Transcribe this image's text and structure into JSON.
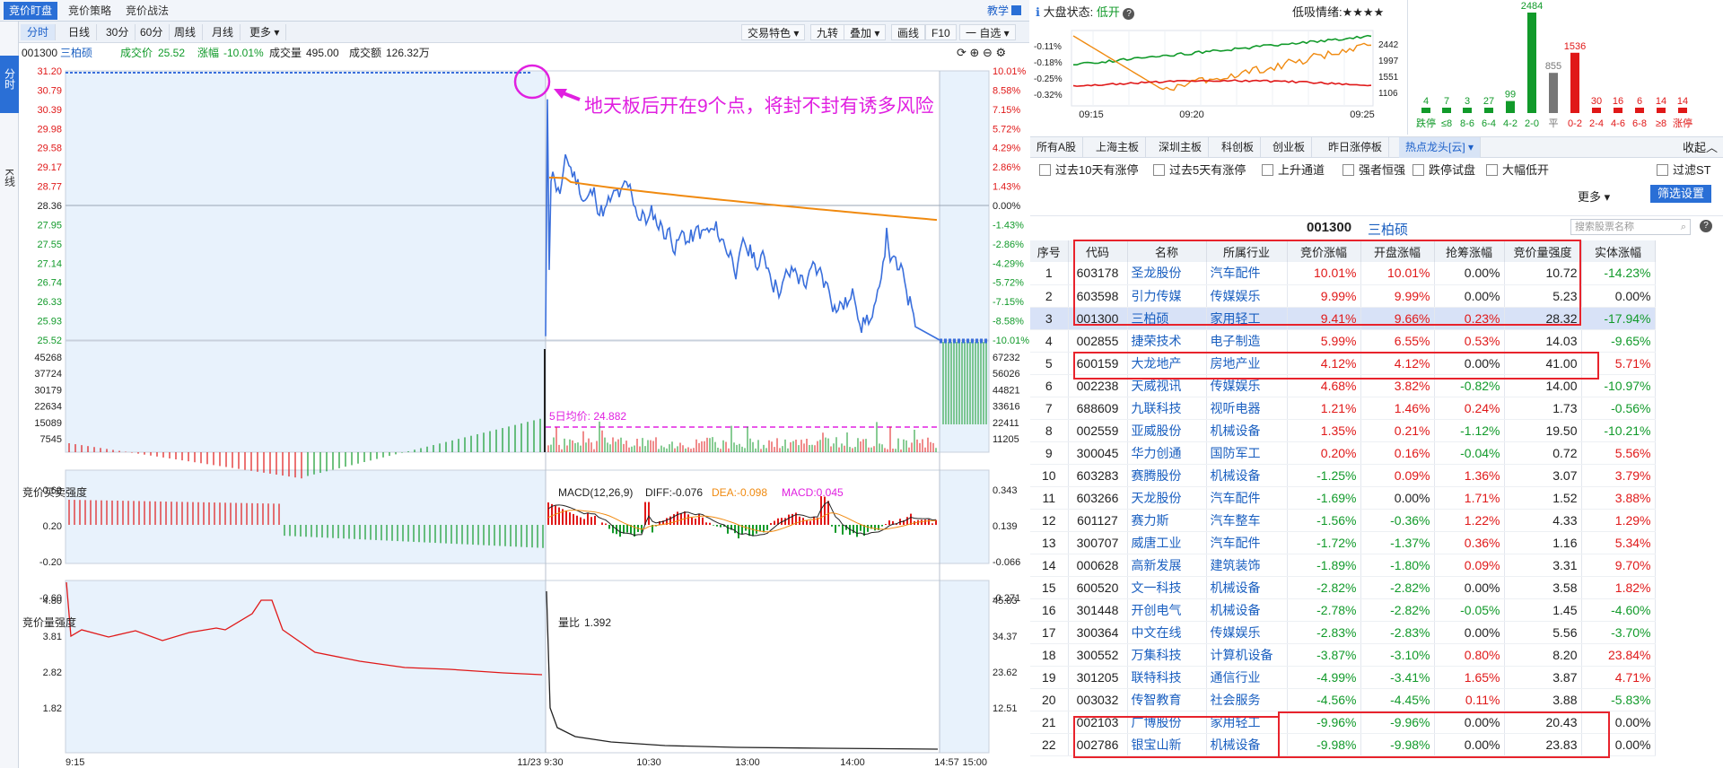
{
  "top_tabs": [
    "竞价盯盘",
    "竞价策略",
    "竞价战法"
  ],
  "teach_label": "教学",
  "rail_tabs": [
    "分时",
    "K线"
  ],
  "periods": [
    "分时",
    "日线",
    "30分",
    "60分",
    "周线",
    "月线",
    "更多 ▾"
  ],
  "right_buttons": [
    "交易特色 ▾",
    "九转",
    "叠加 ▾",
    "画线",
    "F10",
    "一 自选 ▾"
  ],
  "info": {
    "code": "001300",
    "name": "三柏硕",
    "price_label": "成交价",
    "price": "25.52",
    "chg_label": "涨幅",
    "chg": "-10.01%",
    "vol_label": "成交量",
    "vol": "495.00",
    "amt_label": "成交额",
    "amt": "126.32万"
  },
  "annotation": "地天板后开在9个点，将封不封有诱多风险",
  "price_axis_left": [
    "31.20",
    "30.79",
    "30.39",
    "29.98",
    "29.58",
    "29.17",
    "28.77",
    "28.36",
    "27.95",
    "27.55",
    "27.14",
    "26.74",
    "26.33",
    "25.93",
    "25.52"
  ],
  "price_axis_right": [
    "10.01%",
    "8.58%",
    "7.15%",
    "5.72%",
    "4.29%",
    "2.86%",
    "1.43%",
    "0.00%",
    "-1.43%",
    "-2.86%",
    "-4.29%",
    "-5.72%",
    "-7.15%",
    "-8.58%",
    "-10.01%"
  ],
  "vol_axis_left": [
    "45268",
    "37724",
    "30179",
    "22634",
    "15089",
    "7545"
  ],
  "vol_axis_right": [
    "67232",
    "56026",
    "44821",
    "33616",
    "22411",
    "11205"
  ],
  "ma5_label": "5日均价: 24.882",
  "panel2": {
    "title": "竞价买卖强度",
    "macd": "MACD(12,26,9)",
    "diff": "DIFF:-0.076",
    "dea": "DEA:-0.098",
    "macd_v": "MACD:0.045",
    "left_axis": [
      "0.60",
      "0.20",
      "-0.20",
      "-0.60"
    ],
    "right_axis": [
      "0.343",
      "0.139",
      "-0.066",
      "-0.271"
    ]
  },
  "panel3": {
    "title": "竞价量强度",
    "lb": "量比",
    "lb_val": "1.392",
    "left_axis": [
      "4.80",
      "3.81",
      "2.82",
      "1.82"
    ],
    "right_axis": [
      "45.83",
      "34.37",
      "23.62",
      "12.51"
    ]
  },
  "time_axis": [
    "9:15",
    "11/23 9:30",
    "10:30",
    "13:00",
    "14:00",
    "14:57",
    "15:00"
  ],
  "market": {
    "status_label": "大盘状态:",
    "status": "低开",
    "mood_label": "低吸情绪:",
    "mood": "★★★★",
    "left_axis": [
      "-0.11%",
      "-0.18%",
      "-0.25%",
      "-0.32%"
    ],
    "right_axis": [
      "2442",
      "1997",
      "1551",
      "1106"
    ],
    "times": [
      "09:15",
      "09:20",
      "09:25"
    ]
  },
  "dist": {
    "labels": [
      "跌停",
      "≤8",
      "8-6",
      "6-4",
      "4-2",
      "2-0",
      "平",
      "0-2",
      "2-4",
      "4-6",
      "6-8",
      "≥8",
      "涨停"
    ],
    "values": [
      4,
      7,
      3,
      27,
      99,
      2484,
      855,
      1536,
      30,
      16,
      6,
      14,
      14
    ]
  },
  "market_tabs": [
    "所有A股",
    "上海主板",
    "深圳主板",
    "科创板",
    "创业板",
    "昨日涨停板",
    "热点龙头[云] ▾"
  ],
  "collapse": "收起",
  "filters": [
    "过去10天有涨停",
    "过去5天有涨停",
    "上升通道",
    "强者恒强",
    "跌停试盘",
    "大幅低开"
  ],
  "filter_st": "过滤ST",
  "more": "更多 ▾",
  "filter_btn": "筛选设置",
  "sel_code": "001300",
  "sel_name": "三柏硕",
  "search_placeholder": "搜索股票名称",
  "table_headers": [
    "序号",
    "代码",
    "名称",
    "所属行业",
    "竞价涨幅",
    "开盘涨幅",
    "抢筹涨幅",
    "竞价量强度",
    "实体涨幅"
  ],
  "rows": [
    [
      "1",
      "603178",
      "圣龙股份",
      "汽车配件",
      "10.01%",
      "10.01%",
      "0.00%",
      "10.72",
      "-14.23%"
    ],
    [
      "2",
      "603598",
      "引力传媒",
      "传媒娱乐",
      "9.99%",
      "9.99%",
      "0.00%",
      "5.23",
      "0.00%"
    ],
    [
      "3",
      "001300",
      "三柏硕",
      "家用轻工",
      "9.41%",
      "9.66%",
      "0.23%",
      "28.32",
      "-17.94%"
    ],
    [
      "4",
      "002855",
      "捷荣技术",
      "电子制造",
      "5.99%",
      "6.55%",
      "0.53%",
      "14.03",
      "-9.65%"
    ],
    [
      "5",
      "600159",
      "大龙地产",
      "房地产业",
      "4.12%",
      "4.12%",
      "0.00%",
      "41.00",
      "5.71%"
    ],
    [
      "6",
      "002238",
      "天威视讯",
      "传媒娱乐",
      "4.68%",
      "3.82%",
      "-0.82%",
      "14.00",
      "-10.97%"
    ],
    [
      "7",
      "688609",
      "九联科技",
      "视听电器",
      "1.21%",
      "1.46%",
      "0.24%",
      "1.73",
      "-0.56%"
    ],
    [
      "8",
      "002559",
      "亚威股份",
      "机械设备",
      "1.35%",
      "0.21%",
      "-1.12%",
      "19.50",
      "-10.21%"
    ],
    [
      "9",
      "300045",
      "华力创通",
      "国防军工",
      "0.20%",
      "0.16%",
      "-0.04%",
      "0.72",
      "5.56%"
    ],
    [
      "10",
      "603283",
      "赛腾股份",
      "机械设备",
      "-1.25%",
      "0.09%",
      "1.36%",
      "3.07",
      "3.79%"
    ],
    [
      "11",
      "603266",
      "天龙股份",
      "汽车配件",
      "-1.69%",
      "0.00%",
      "1.71%",
      "1.52",
      "3.88%"
    ],
    [
      "12",
      "601127",
      "赛力斯",
      "汽车整车",
      "-1.56%",
      "-0.36%",
      "1.22%",
      "4.33",
      "1.29%"
    ],
    [
      "13",
      "300707",
      "威唐工业",
      "汽车配件",
      "-1.72%",
      "-1.37%",
      "0.36%",
      "1.16",
      "5.34%"
    ],
    [
      "14",
      "000628",
      "高新发展",
      "建筑装饰",
      "-1.89%",
      "-1.80%",
      "0.09%",
      "3.31",
      "9.70%"
    ],
    [
      "15",
      "600520",
      "文一科技",
      "机械设备",
      "-2.82%",
      "-2.82%",
      "0.00%",
      "3.58",
      "1.82%"
    ],
    [
      "16",
      "301448",
      "开创电气",
      "机械设备",
      "-2.78%",
      "-2.82%",
      "-0.05%",
      "1.45",
      "-4.60%"
    ],
    [
      "17",
      "300364",
      "中文在线",
      "传媒娱乐",
      "-2.83%",
      "-2.83%",
      "0.00%",
      "5.56",
      "-3.70%"
    ],
    [
      "18",
      "300552",
      "万集科技",
      "计算机设备",
      "-3.87%",
      "-3.10%",
      "0.80%",
      "8.20",
      "23.84%"
    ],
    [
      "19",
      "301205",
      "联特科技",
      "通信行业",
      "-4.99%",
      "-3.41%",
      "1.65%",
      "3.87",
      "4.71%"
    ],
    [
      "20",
      "003032",
      "传智教育",
      "社会服务",
      "-4.56%",
      "-4.45%",
      "0.11%",
      "3.88",
      "-5.83%"
    ],
    [
      "21",
      "002103",
      "广博股份",
      "家用轻工",
      "-9.96%",
      "-9.96%",
      "0.00%",
      "20.43",
      "0.00%"
    ],
    [
      "22",
      "002786",
      "银宝山新",
      "机械设备",
      "-9.98%",
      "-9.98%",
      "0.00%",
      "23.83",
      "0.00%"
    ]
  ],
  "colors": {
    "accent": "#2a6fd6",
    "up": "#e01818",
    "down": "#119a2a",
    "price_line": "#3a6fdc",
    "avg_line": "#f08a10",
    "ma_line": "#e020e0"
  }
}
